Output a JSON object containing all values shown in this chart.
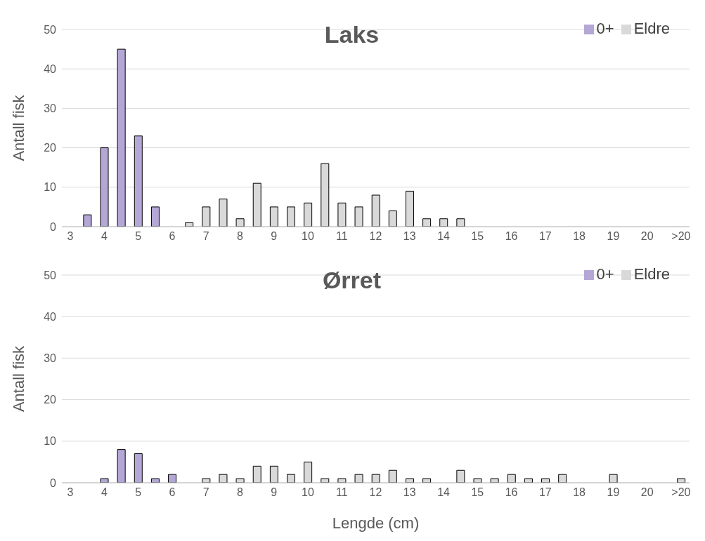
{
  "chart_data": [
    {
      "type": "bar",
      "title": "Laks",
      "ylabel": "Antall fisk",
      "categories": [
        "3",
        null,
        "4",
        null,
        "5",
        null,
        "6",
        null,
        "7",
        null,
        "8",
        null,
        "9",
        null,
        "10",
        null,
        "11",
        null,
        "12",
        null,
        "13",
        null,
        "14",
        null,
        "15",
        null,
        "16",
        null,
        "17",
        null,
        "18",
        null,
        "19",
        null,
        "20",
        null,
        ">20"
      ],
      "stacked": true,
      "series": [
        {
          "name": "0+",
          "color": "#b4a7d6",
          "values": [
            null,
            3,
            20,
            45,
            23,
            5,
            null,
            null,
            null,
            null,
            null,
            null,
            null,
            null,
            null,
            null,
            null,
            null,
            null,
            null,
            null,
            null,
            null,
            null,
            null,
            null,
            null,
            null,
            null,
            null,
            null,
            null,
            null,
            null,
            null,
            null,
            null
          ]
        },
        {
          "name": "Eldre",
          "color": "#d9d9d9",
          "values": [
            null,
            null,
            null,
            null,
            null,
            null,
            null,
            1,
            5,
            7,
            2,
            11,
            5,
            5,
            6,
            16,
            6,
            5,
            8,
            4,
            9,
            2,
            2,
            2,
            null,
            null,
            null,
            null,
            null,
            null,
            null,
            null,
            null,
            null,
            null,
            null,
            null
          ]
        }
      ],
      "ylim": [
        0,
        50
      ],
      "yticks": [
        0,
        10,
        20,
        30,
        40,
        50
      ],
      "grid": "y",
      "legend": "top right"
    },
    {
      "type": "bar",
      "title": "Ørret",
      "ylabel": "Antall fisk",
      "xlabel": "Lengde (cm)",
      "categories": [
        "3",
        null,
        "4",
        null,
        "5",
        null,
        "6",
        null,
        "7",
        null,
        "8",
        null,
        "9",
        null,
        "10",
        null,
        "11",
        null,
        "12",
        null,
        "13",
        null,
        "14",
        null,
        "15",
        null,
        "16",
        null,
        "17",
        null,
        "18",
        null,
        "19",
        null,
        "20",
        null,
        ">20"
      ],
      "stacked": true,
      "series": [
        {
          "name": "0+",
          "color": "#b4a7d6",
          "values": [
            null,
            null,
            1,
            8,
            7,
            1,
            2,
            null,
            null,
            null,
            null,
            null,
            null,
            null,
            null,
            null,
            null,
            null,
            null,
            null,
            null,
            null,
            null,
            null,
            null,
            null,
            null,
            null,
            null,
            null,
            null,
            null,
            null,
            null,
            null,
            null,
            null
          ]
        },
        {
          "name": "Eldre",
          "color": "#d9d9d9",
          "values": [
            null,
            null,
            null,
            null,
            null,
            null,
            null,
            null,
            1,
            2,
            1,
            4,
            4,
            2,
            5,
            1,
            1,
            2,
            2,
            3,
            1,
            1,
            null,
            3,
            1,
            1,
            2,
            1,
            1,
            2,
            null,
            null,
            2,
            null,
            null,
            null,
            1
          ]
        }
      ],
      "ylim": [
        0,
        50
      ],
      "yticks": [
        0,
        10,
        20,
        30,
        40,
        50
      ],
      "grid": "y",
      "legend": "top right"
    }
  ]
}
